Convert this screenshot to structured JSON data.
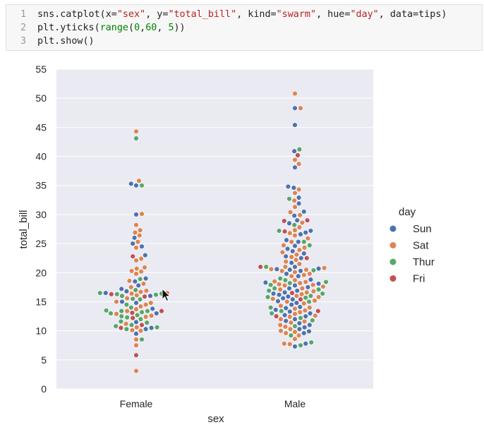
{
  "code_cell": {
    "lines": [
      {
        "no": "1",
        "tokens": [
          {
            "t": "sns.catplot(x=",
            "c": "plain"
          },
          {
            "t": "\"sex\"",
            "c": "str"
          },
          {
            "t": ", y=",
            "c": "plain"
          },
          {
            "t": "\"total_bill\"",
            "c": "str"
          },
          {
            "t": ", kind=",
            "c": "plain"
          },
          {
            "t": "\"swarm\"",
            "c": "str"
          },
          {
            "t": ", hue=",
            "c": "plain"
          },
          {
            "t": "\"day\"",
            "c": "str"
          },
          {
            "t": ", data=tips)",
            "c": "plain"
          }
        ]
      },
      {
        "no": "2",
        "tokens": [
          {
            "t": "plt.yticks(",
            "c": "plain"
          },
          {
            "t": "range",
            "c": "kw"
          },
          {
            "t": "(",
            "c": "plain"
          },
          {
            "t": "0",
            "c": "num"
          },
          {
            "t": ",",
            "c": "plain"
          },
          {
            "t": "60",
            "c": "num"
          },
          {
            "t": ", ",
            "c": "plain"
          },
          {
            "t": "5",
            "c": "num"
          },
          {
            "t": "))",
            "c": "plain"
          }
        ]
      },
      {
        "no": "3",
        "tokens": [
          {
            "t": "plt.show()",
            "c": "plain"
          }
        ]
      }
    ]
  },
  "chart_data": {
    "type": "scatter",
    "kind": "swarm",
    "xlabel": "sex",
    "ylabel": "total_bill",
    "categories": [
      "Female",
      "Male"
    ],
    "ylim": [
      0,
      55
    ],
    "yticks": [
      0,
      5,
      10,
      15,
      20,
      25,
      30,
      35,
      40,
      45,
      50,
      55
    ],
    "grid": true,
    "legend": {
      "title": "day",
      "placement": "right"
    },
    "colors": {
      "Sun": "#4c72b0",
      "Sat": "#dd8452",
      "Thur": "#55a868",
      "Fri": "#c44e52"
    },
    "series": [
      {
        "name": "Sun",
        "values": {
          "Female": [
            35.3,
            35.0,
            30.0,
            26.0,
            25.0,
            24.5,
            23.0,
            19.0,
            18.5,
            17.8,
            17.2,
            16.8,
            16.5,
            16.0,
            15.0,
            14.8,
            13.8,
            13.0,
            11.5,
            10.5,
            10.3,
            9.5
          ],
          "Male": [
            48.3,
            45.4,
            40.9,
            38.1,
            34.8,
            34.6,
            32.9,
            31.9,
            30.5,
            29.8,
            29.0,
            28.5,
            27.2,
            26.9,
            26.6,
            25.6,
            25.3,
            24.6,
            24.1,
            23.7,
            23.3,
            22.8,
            22.5,
            21.7,
            21.0,
            20.7,
            20.6,
            20.5,
            20.3,
            19.8,
            19.4,
            18.8,
            18.3,
            18.1,
            17.8,
            17.5,
            17.3,
            16.9,
            16.6,
            16.4,
            16.2,
            15.9,
            15.6,
            15.4,
            15.1,
            14.8,
            14.5,
            14.1,
            13.9,
            13.6,
            13.3,
            13.0,
            12.7,
            12.5,
            12.0,
            11.7,
            11.3,
            11.0,
            10.6,
            10.3,
            9.9,
            9.6,
            7.8,
            7.3
          ]
        }
      },
      {
        "name": "Sat",
        "values": {
          "Female": [
            44.3,
            35.8,
            30.1,
            28.2,
            27.3,
            26.9,
            26.4,
            25.3,
            24.3,
            22.4,
            22.1,
            20.9,
            20.7,
            20.3,
            20.2,
            19.8,
            18.6,
            18.1,
            17.5,
            16.9,
            16.7,
            16.5,
            16.4,
            16.1,
            15.6,
            15.0,
            14.8,
            14.5,
            14.2,
            13.7,
            13.4,
            12.9,
            12.6,
            12.4,
            11.2,
            10.6,
            10.1,
            10.0,
            8.5,
            7.5,
            3.1
          ],
          "Male": [
            50.8,
            48.3,
            39.4,
            38.7,
            34.3,
            33.7,
            32.4,
            31.3,
            30.4,
            29.9,
            28.6,
            27.8,
            27.3,
            26.8,
            26.4,
            25.9,
            25.3,
            24.7,
            24.3,
            23.9,
            23.5,
            23.1,
            22.7,
            22.2,
            21.9,
            21.5,
            21.0,
            20.8,
            20.6,
            20.5,
            20.3,
            20.1,
            19.8,
            19.6,
            19.4,
            18.7,
            18.5,
            18.4,
            18.2,
            18.0,
            17.9,
            17.8,
            17.6,
            17.3,
            17.1,
            16.8,
            16.6,
            16.3,
            16.0,
            15.8,
            15.5,
            15.2,
            15.0,
            14.7,
            14.3,
            14.0,
            13.8,
            13.5,
            13.2,
            12.9,
            12.6,
            12.4,
            12.0,
            11.6,
            11.4,
            11.0,
            10.7,
            10.3,
            10.0,
            9.8,
            9.6,
            9.2,
            8.6,
            7.8,
            7.7
          ]
        }
      },
      {
        "name": "Thur",
        "values": {
          "Female": [
            43.1,
            35.0,
            18.9,
            17.0,
            16.5,
            16.4,
            16.3,
            16.2,
            16.0,
            15.5,
            15.4,
            14.5,
            14.0,
            13.5,
            13.4,
            13.4,
            13.2,
            13.0,
            12.7,
            12.5,
            12.3,
            12.0,
            11.6,
            11.4,
            11.0,
            10.8,
            10.6,
            10.3,
            8.5
          ],
          "Male": [
            41.2,
            32.7,
            28.2,
            27.2,
            25.3,
            24.7,
            21.0,
            20.4,
            19.0,
            18.7,
            18.4,
            18.2,
            17.9,
            17.3,
            17.1,
            16.9,
            16.4,
            16.0,
            15.8,
            15.7,
            15.0,
            14.0,
            13.4,
            13.0,
            12.2,
            11.8,
            10.8,
            9.2,
            8.0,
            7.5
          ]
        }
      },
      {
        "name": "Fri",
        "values": {
          "Female": [
            22.8,
            16.3,
            15.9,
            13.4,
            13.1,
            12.2,
            11.0,
            10.5,
            5.8
          ],
          "Male": [
            40.2,
            29.0,
            28.9,
            27.1,
            22.5,
            21.0,
            16.5,
            15.4,
            13.4,
            12.5
          ]
        }
      }
    ]
  }
}
